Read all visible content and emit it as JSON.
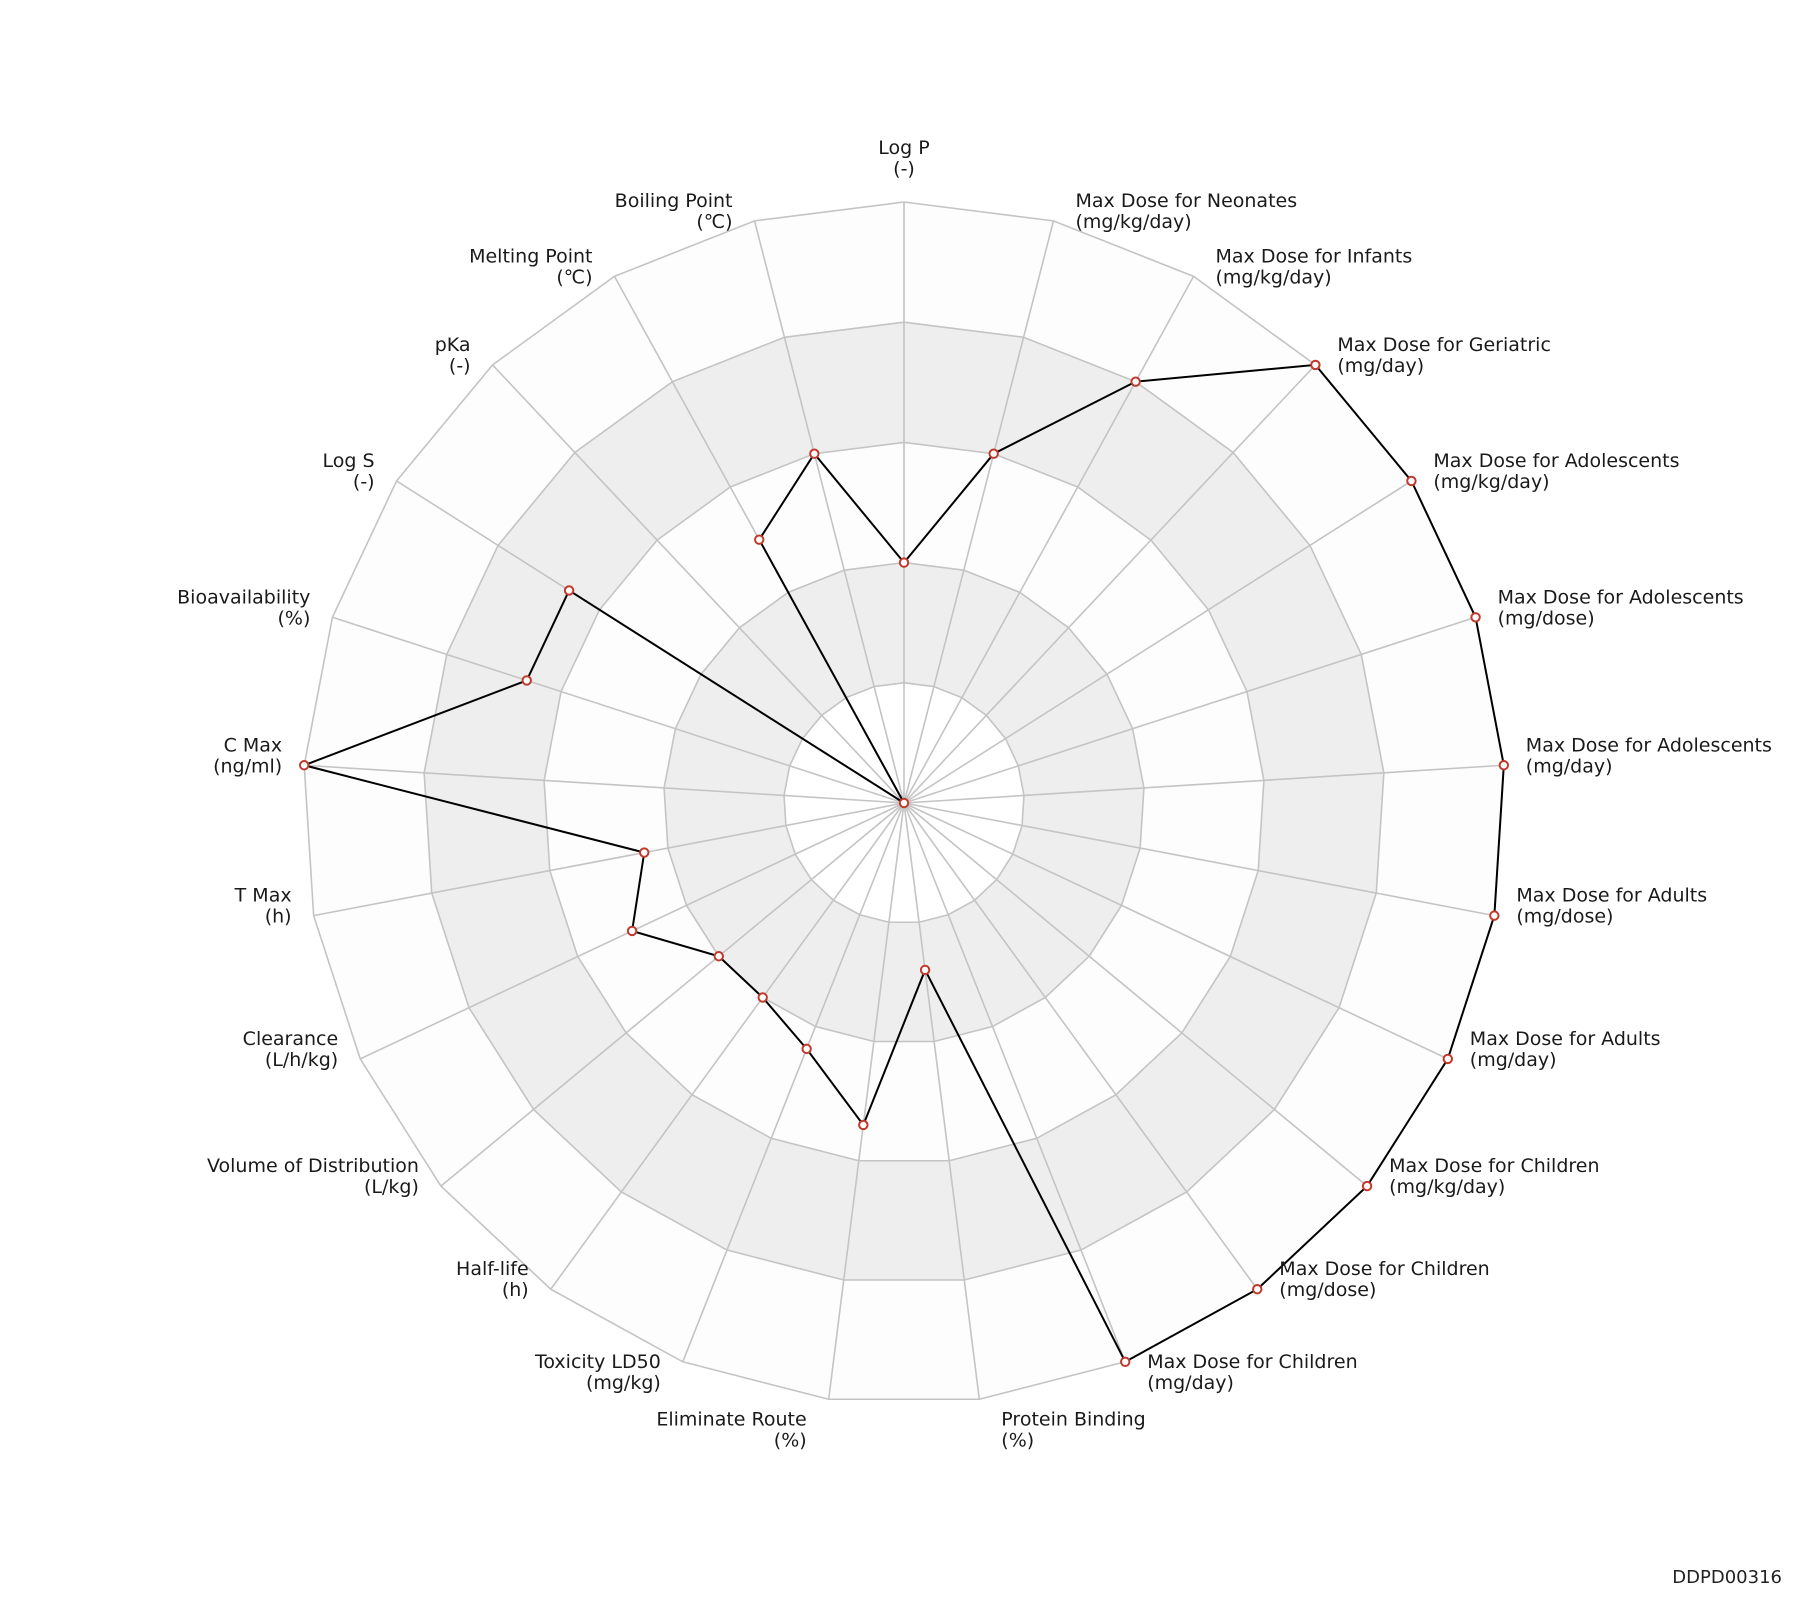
{
  "chart_data": {
    "type": "radar",
    "max_value": 5,
    "rings": 5,
    "band_colors": [
      "#ffffff",
      "#eeeeee",
      "#fdfdfd",
      "#eeeeee",
      "#fdfdfd"
    ],
    "grid_color": "#c4c4c4",
    "line_color": "#000000",
    "marker_color": "#c0392b",
    "axes": [
      {
        "name": "Log P",
        "unit": "(-)",
        "value": 2.0
      },
      {
        "name": "Max Dose for Neonates",
        "unit": "(mg/kg/day)",
        "value": 3.0
      },
      {
        "name": "Max Dose for Infants",
        "unit": "(mg/kg/day)",
        "value": 4.0
      },
      {
        "name": "Max Dose for Geriatric",
        "unit": "(mg/day)",
        "value": 5.0
      },
      {
        "name": "Max Dose for Adolescents",
        "unit": "(mg/kg/day)",
        "value": 5.0
      },
      {
        "name": "Max Dose for Adolescents",
        "unit": "(mg/dose)",
        "value": 5.0
      },
      {
        "name": "Max Dose for Adolescents",
        "unit": "(mg/day)",
        "value": 5.0
      },
      {
        "name": "Max Dose for Adults",
        "unit": "(mg/dose)",
        "value": 5.0
      },
      {
        "name": "Max Dose for Adults",
        "unit": "(mg/day)",
        "value": 5.0
      },
      {
        "name": "Max Dose for Children",
        "unit": "(mg/kg/day)",
        "value": 5.0
      },
      {
        "name": "Max Dose for Children",
        "unit": "(mg/dose)",
        "value": 5.0
      },
      {
        "name": "Max Dose for Children",
        "unit": "(mg/day)",
        "value": 5.0
      },
      {
        "name": "Protein Binding",
        "unit": "(%)",
        "value": 1.4
      },
      {
        "name": "Eliminate Route",
        "unit": "(%)",
        "value": 2.7
      },
      {
        "name": "Toxicity LD50",
        "unit": "(mg/kg)",
        "value": 2.2
      },
      {
        "name": "Half-life",
        "unit": "(h)",
        "value": 2.0
      },
      {
        "name": "Volume of Distribution",
        "unit": "(L/kg)",
        "value": 2.0
      },
      {
        "name": "Clearance",
        "unit": "(L/h/kg)",
        "value": 2.5
      },
      {
        "name": "T Max",
        "unit": "(h)",
        "value": 2.2
      },
      {
        "name": "C Max",
        "unit": "(ng/ml)",
        "value": 5.0
      },
      {
        "name": "Bioavailability",
        "unit": "(%)",
        "value": 3.3
      },
      {
        "name": "Log S",
        "unit": "(-)",
        "value": 3.3
      },
      {
        "name": "pKa",
        "unit": "(-)",
        "value": 0.0
      },
      {
        "name": "Melting Point",
        "unit": "(℃)",
        "value": 2.5
      },
      {
        "name": "Boiling Point",
        "unit": "(℃)",
        "value": 3.0
      }
    ]
  },
  "footer": {
    "id": "DDPD00316"
  }
}
